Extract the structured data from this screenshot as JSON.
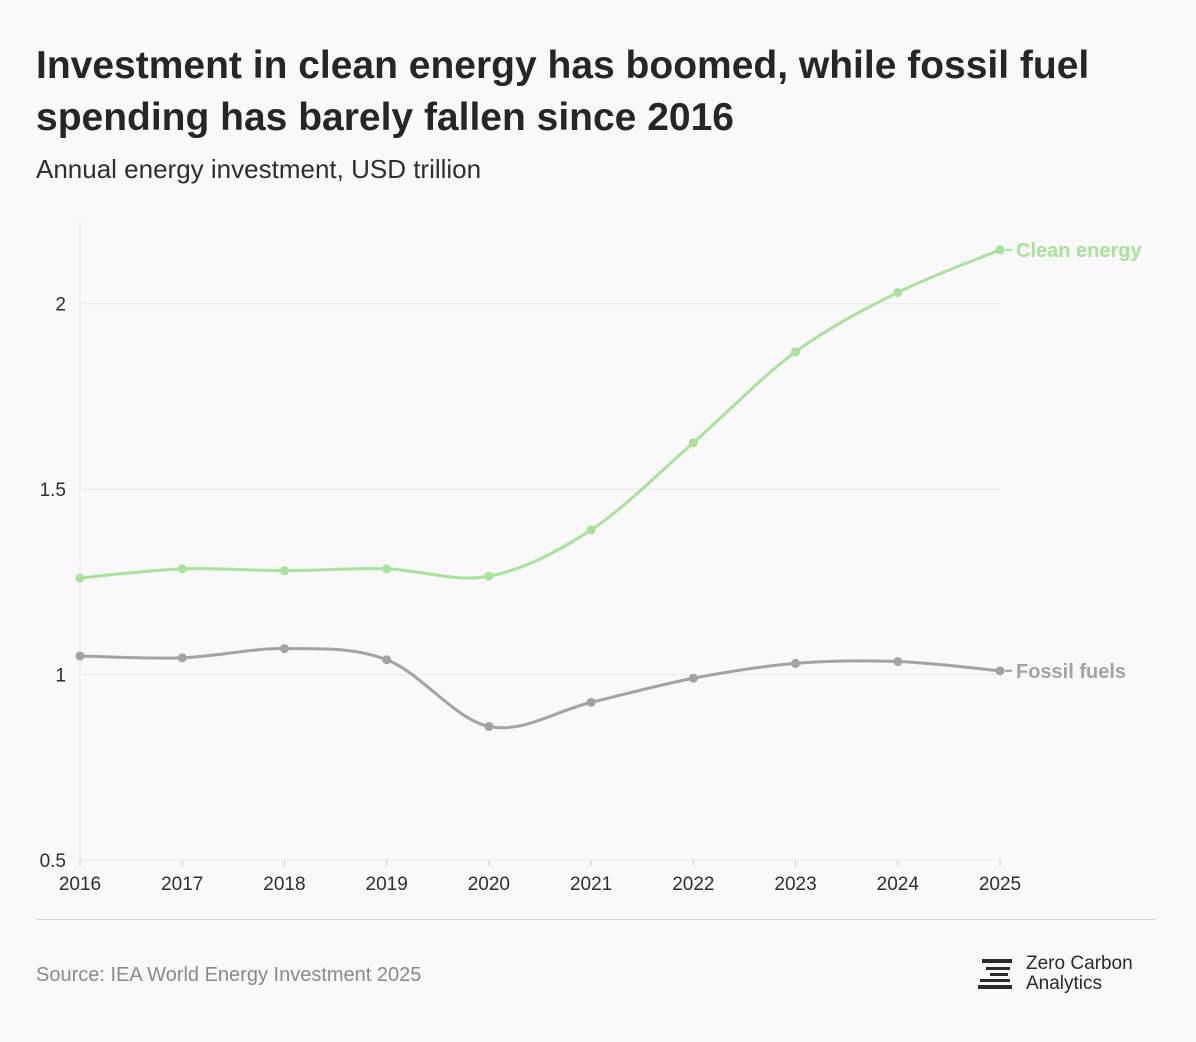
{
  "header": {
    "title": "Investment in clean energy has boomed, while fossil fuel spending has barely fallen since 2016",
    "subtitle": "Annual energy investment, USD trillion"
  },
  "footer": {
    "source": "Source: IEA World Energy Investment 2025",
    "brand_line1": "Zero Carbon",
    "brand_line2": "Analytics",
    "brand_icon": "zero-carbon-analytics-logo-icon"
  },
  "colors": {
    "clean": "#a8e29b",
    "fossil": "#a3a3a3",
    "grid": "#ececec",
    "text": "#2e2e2e"
  },
  "chart_data": {
    "type": "line",
    "title": "Investment in clean energy has boomed, while fossil fuel spending has barely fallen since 2016",
    "subtitle": "Annual energy investment, USD trillion",
    "xlabel": "",
    "ylabel": "",
    "x": [
      "2016",
      "2017",
      "2018",
      "2019",
      "2020",
      "2021",
      "2022",
      "2023",
      "2024",
      "2025"
    ],
    "yticks": [
      0.5,
      1,
      1.5,
      2
    ],
    "ytick_labels": [
      "0.5",
      "1",
      "1.5",
      "2"
    ],
    "ylim": [
      0.5,
      2.22
    ],
    "grid": true,
    "series": [
      {
        "name": "Clean energy",
        "color": "#a8e29b",
        "values": [
          1.26,
          1.285,
          1.28,
          1.285,
          1.265,
          1.39,
          1.625,
          1.87,
          2.03,
          2.145
        ]
      },
      {
        "name": "Fossil fuels",
        "color": "#a3a3a3",
        "values": [
          1.05,
          1.045,
          1.07,
          1.04,
          0.86,
          0.925,
          0.99,
          1.03,
          1.035,
          1.01
        ]
      }
    ]
  }
}
